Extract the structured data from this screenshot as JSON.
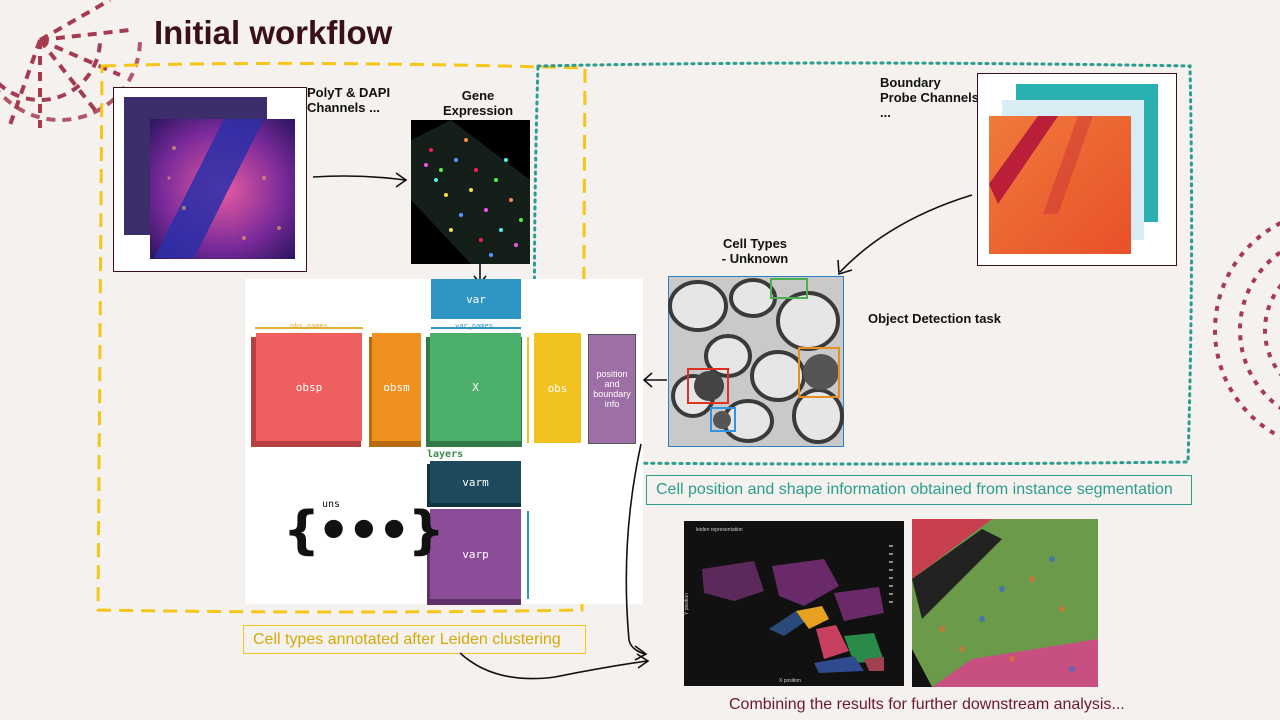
{
  "slide": {
    "title": "Initial workflow",
    "labels": {
      "polyt_dapi": "PolyT & DAPI Channels ...",
      "gene_expression": "Gene Expression",
      "boundary_probe": "Boundary Probe Channels ...",
      "cell_types_unknown_line1": "Cell Types",
      "cell_types_unknown_line2": "- Unknown",
      "object_detection": "Object Detection task"
    },
    "captions": {
      "segmentation": "Cell position and shape information obtained from instance segmentation",
      "leiden": "Cell types annotated after Leiden clustering",
      "downstream": "Combining the results for further downstream analysis..."
    },
    "anndata": {
      "var": "var",
      "var_names": "var_names",
      "obs_names": "obs_names",
      "obsp": "obsp",
      "obsm": "obsm",
      "x": "X",
      "obs": "obs",
      "position_info": "position and boundary info",
      "layers": "layers",
      "varm": "varm",
      "varp": "varp",
      "uns": "uns",
      "uns_braces": "{•••}"
    },
    "leiden_plot": {
      "title": "leiden representation",
      "xlabel": "X position",
      "ylabel": "Y position"
    },
    "colors": {
      "title": "#3a1018",
      "yellow_dash": "#f5c518",
      "teal_dot": "#2a9d8f",
      "segmentation_caption": "#2a9d8f",
      "leiden_caption": "#d4a90a",
      "downstream_caption": "#6b1a2a",
      "obsp": "#ef5f5f",
      "obsm": "#f0901e",
      "x": "#4caf6b",
      "obs": "#f2c31e",
      "position": "#9e6fa6",
      "var": "#2e95c4",
      "varm": "#1d4a5c",
      "varp": "#8b4d97"
    }
  }
}
